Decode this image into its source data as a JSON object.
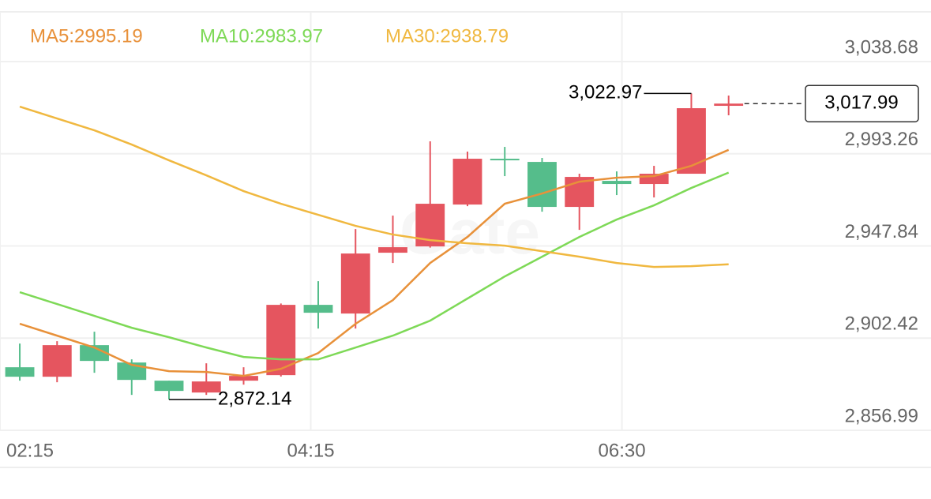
{
  "chart_data": {
    "type": "candlestick",
    "watermark": "Gate",
    "up_color": "#e5555f",
    "down_color": "#55bd8b",
    "open": [
      2888.06,
      2883.39,
      2898.96,
      2890.4,
      2881.45,
      2875.61,
      2881.45,
      2884.17,
      2918.81,
      2914.53,
      2944.5,
      2947.61,
      2968.24,
      2990.81,
      2989.25,
      2967.07,
      2979.91,
      2978.36,
      2983.42,
      3016.89
    ],
    "high": [
      2899.74,
      2900.91,
      2905.58,
      2891.95,
      2881.45,
      2890.01,
      2888.06,
      2919.5,
      2930.48,
      2956.17,
      2962.79,
      2999.37,
      2994.31,
      2996.65,
      2991.2,
      2983.42,
      2984.58,
      2987.31,
      3022.97,
      3021.95
    ],
    "low": [
      2881.45,
      2880.67,
      2885.34,
      2874.44,
      2872.14,
      2874.44,
      2879.5,
      2883.5,
      2907.13,
      2907.13,
      2939.44,
      2947.0,
      2967.46,
      2982.25,
      2964.73,
      2955.78,
      2972.91,
      2971.74,
      2983.42,
      3012.22
    ],
    "close": [
      2883.39,
      2898.96,
      2891.18,
      2881.83,
      2876.39,
      2881.06,
      2883.78,
      2918.81,
      2914.92,
      2944.11,
      2947.22,
      2968.63,
      2990.81,
      2990.03,
      2967.07,
      2981.86,
      2978.36,
      2983.42,
      3015.72,
      3017.99
    ],
    "series": [
      {
        "name": "MA5:2995.19",
        "color": "#e8913a",
        "values": [
          2909.47,
          2903.63,
          2897.79,
          2889.23,
          2886.12,
          2885.73,
          2883.78,
          2887.28,
          2895.07,
          2909.47,
          2921.14,
          2939.44,
          2952.28,
          2968.63,
          2973.69,
          2979.52,
          2981.47,
          2982.25,
          2987.31,
          2995.19
        ]
      },
      {
        "name": "MA10:2983.97",
        "color": "#7ed957",
        "values": [
          2925.04,
          2919.2,
          2913.36,
          2907.52,
          2902.85,
          2897.79,
          2893.12,
          2891.95,
          2891.95,
          2897.79,
          2903.63,
          2911.02,
          2921.92,
          2932.82,
          2942.55,
          2952.28,
          2960.84,
          2967.85,
          2976.41,
          2983.97
        ]
      },
      {
        "name": "MA30:2938.79",
        "color": "#f0b840",
        "values": [
          3016.5,
          3010.66,
          3004.82,
          2997.82,
          2990.03,
          2982.64,
          2974.85,
          2968.63,
          2963.18,
          2957.73,
          2953.45,
          2950.72,
          2949.17,
          2948.0,
          2945.27,
          2942.55,
          2939.44,
          2937.49,
          2937.88,
          2938.79
        ]
      }
    ],
    "high_label": {
      "value": 3022.97,
      "label": "3,022.97"
    },
    "low_label": {
      "value": 2872.14,
      "label": "2,872.14"
    },
    "last_price": {
      "value": 3017.99,
      "label": "3,017.99"
    },
    "xlim": [
      -0.53,
      21.8
    ],
    "xticks": [
      {
        "value": -0.53,
        "label": "02:15"
      },
      {
        "value": 7.8,
        "label": "04:15"
      },
      {
        "value": 16.14,
        "label": "06:30"
      }
    ],
    "ylim": [
      2856.99,
      3063.2
    ],
    "yticks": [
      {
        "value": 2856.99,
        "label": "2,856.99"
      },
      {
        "value": 2902.42,
        "label": "2,902.42"
      },
      {
        "value": 2947.84,
        "label": "2,947.84"
      },
      {
        "value": 2993.26,
        "label": "2,993.26"
      },
      {
        "value": 3038.68,
        "label": "3,038.68"
      }
    ],
    "grid": true
  }
}
